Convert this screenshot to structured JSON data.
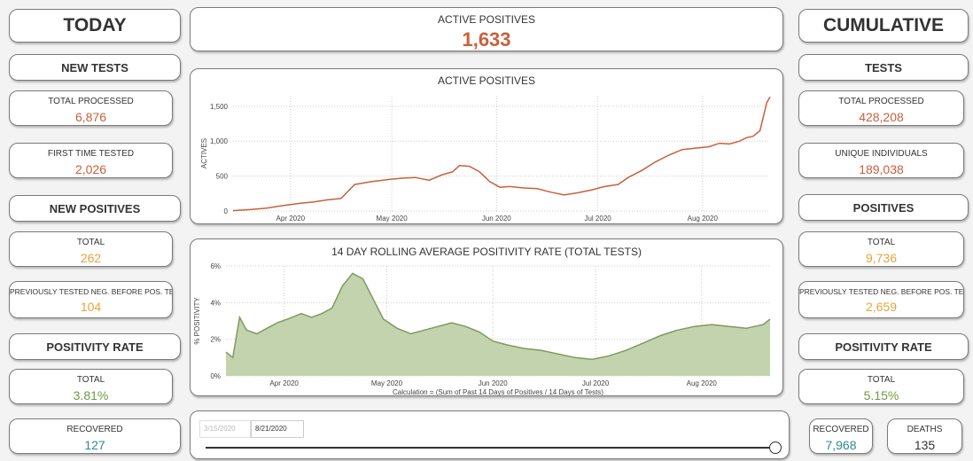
{
  "left": {
    "title": "TODAY",
    "new_tests": {
      "header": "NEW TESTS",
      "total_processed_label": "TOTAL PROCESSED",
      "total_processed_value": "6,876",
      "first_time_label": "FIRST TIME TESTED",
      "first_time_value": "2,026"
    },
    "new_positives": {
      "header": "NEW POSITIVES",
      "total_label": "TOTAL",
      "total_value": "262",
      "prev_label": "PREVIOUSLY TESTED NEG. BEFORE POS. TEST",
      "prev_value": "104"
    },
    "positivity": {
      "header": "POSITIVITY RATE",
      "total_label": "TOTAL",
      "total_value": "3.81%"
    },
    "recovered": {
      "label": "RECOVERED",
      "value": "127"
    }
  },
  "center": {
    "active_label": "ACTIVE POSITIVES",
    "active_value": "1,633",
    "slider": {
      "start": "3/15/2020",
      "end": "8/21/2020"
    }
  },
  "right": {
    "title": "CUMULATIVE",
    "tests": {
      "header": "TESTS",
      "total_processed_label": "TOTAL PROCESSED",
      "total_processed_value": "428,208",
      "unique_label": "UNIQUE INDIVIDUALS",
      "unique_value": "189,038"
    },
    "positives": {
      "header": "POSITIVES",
      "total_label": "TOTAL",
      "total_value": "9,736",
      "prev_label": "PREVIOUSLY TESTED NEG. BEFORE POS. TEST",
      "prev_value": "2,659"
    },
    "positivity": {
      "header": "POSITIVITY RATE",
      "total_label": "TOTAL",
      "total_value": "5.15%"
    },
    "recovered": {
      "label": "RECOVERED",
      "value": "7,968"
    },
    "deaths": {
      "label": "DEATHS",
      "value": "135"
    }
  },
  "colors": {
    "accent_red": "#c8603d",
    "accent_orange": "#e8a33c",
    "accent_green": "#6f9a43",
    "accent_teal": "#2f8a96",
    "area_fill": "#c2d3ad"
  },
  "chart_data": [
    {
      "type": "line",
      "title": "ACTIVE POSITIVES",
      "xlabel": "",
      "ylabel": "ACTIVES",
      "xlim": [
        "2020-03-15",
        "2020-08-21"
      ],
      "ylim": [
        0,
        1650
      ],
      "yticks": [
        0,
        500,
        1000,
        1500
      ],
      "ytick_labels": [
        "0",
        "500",
        "1,000",
        "1,500"
      ],
      "xtick_labels": [
        {
          "date": "2020-04-01",
          "label": "Apr 2020"
        },
        {
          "date": "2020-05-01",
          "label": "May 2020"
        },
        {
          "date": "2020-06-01",
          "label": "Jun 2020"
        },
        {
          "date": "2020-07-01",
          "label": "Jul 2020"
        },
        {
          "date": "2020-08-01",
          "label": "Aug 2020"
        }
      ],
      "grid": true,
      "color": "#c8603d",
      "x": [
        "2020-03-15",
        "2020-03-20",
        "2020-03-25",
        "2020-03-30",
        "2020-04-04",
        "2020-04-08",
        "2020-04-12",
        "2020-04-16",
        "2020-04-20",
        "2020-04-25",
        "2020-04-30",
        "2020-05-04",
        "2020-05-08",
        "2020-05-12",
        "2020-05-16",
        "2020-05-19",
        "2020-05-21",
        "2020-05-24",
        "2020-05-27",
        "2020-05-30",
        "2020-06-02",
        "2020-06-05",
        "2020-06-09",
        "2020-06-13",
        "2020-06-17",
        "2020-06-21",
        "2020-06-25",
        "2020-06-29",
        "2020-07-03",
        "2020-07-07",
        "2020-07-10",
        "2020-07-14",
        "2020-07-18",
        "2020-07-22",
        "2020-07-26",
        "2020-07-30",
        "2020-08-03",
        "2020-08-06",
        "2020-08-09",
        "2020-08-12",
        "2020-08-14",
        "2020-08-16",
        "2020-08-18",
        "2020-08-20",
        "2020-08-21"
      ],
      "values": [
        5,
        20,
        40,
        80,
        110,
        130,
        160,
        180,
        380,
        420,
        450,
        470,
        480,
        440,
        520,
        560,
        650,
        640,
        560,
        420,
        340,
        350,
        330,
        320,
        270,
        230,
        260,
        300,
        350,
        380,
        480,
        580,
        700,
        800,
        880,
        900,
        920,
        970,
        960,
        1000,
        1050,
        1070,
        1150,
        1550,
        1633
      ]
    },
    {
      "type": "area",
      "title": "14 DAY ROLLING AVERAGE POSITIVITY RATE (TOTAL TESTS)",
      "xlabel": "Calculation = (Sum of Past 14 Days of Positives / 14 Days of Tests)",
      "ylabel": "% POSITIVITY",
      "xlim": [
        "2020-03-15",
        "2020-08-21"
      ],
      "ylim": [
        0,
        6
      ],
      "yticks": [
        0,
        2,
        4,
        6
      ],
      "ytick_labels": [
        "0%",
        "2%",
        "4%",
        "6%"
      ],
      "xtick_labels": [
        {
          "date": "2020-04-01",
          "label": "Apr 2020"
        },
        {
          "date": "2020-05-01",
          "label": "May 2020"
        },
        {
          "date": "2020-06-01",
          "label": "Jun 2020"
        },
        {
          "date": "2020-07-01",
          "label": "Jul 2020"
        },
        {
          "date": "2020-08-01",
          "label": "Aug 2020"
        }
      ],
      "grid": true,
      "color": "#7f9a61",
      "x": [
        "2020-03-15",
        "2020-03-17",
        "2020-03-19",
        "2020-03-21",
        "2020-03-24",
        "2020-03-27",
        "2020-03-30",
        "2020-04-02",
        "2020-04-06",
        "2020-04-09",
        "2020-04-12",
        "2020-04-15",
        "2020-04-18",
        "2020-04-21",
        "2020-04-24",
        "2020-04-27",
        "2020-04-30",
        "2020-05-04",
        "2020-05-08",
        "2020-05-12",
        "2020-05-16",
        "2020-05-20",
        "2020-05-24",
        "2020-05-28",
        "2020-06-01",
        "2020-06-05",
        "2020-06-10",
        "2020-06-15",
        "2020-06-20",
        "2020-06-25",
        "2020-06-30",
        "2020-07-05",
        "2020-07-10",
        "2020-07-15",
        "2020-07-20",
        "2020-07-25",
        "2020-07-30",
        "2020-08-04",
        "2020-08-09",
        "2020-08-14",
        "2020-08-19",
        "2020-08-21"
      ],
      "values": [
        1.3,
        1.0,
        3.2,
        2.5,
        2.3,
        2.6,
        2.9,
        3.1,
        3.4,
        3.2,
        3.4,
        3.7,
        4.9,
        5.6,
        5.3,
        4.2,
        3.1,
        2.6,
        2.3,
        2.5,
        2.7,
        2.9,
        2.7,
        2.4,
        1.9,
        1.7,
        1.5,
        1.4,
        1.2,
        1.0,
        0.9,
        1.1,
        1.4,
        1.8,
        2.2,
        2.5,
        2.7,
        2.8,
        2.7,
        2.6,
        2.8,
        3.1
      ]
    }
  ]
}
